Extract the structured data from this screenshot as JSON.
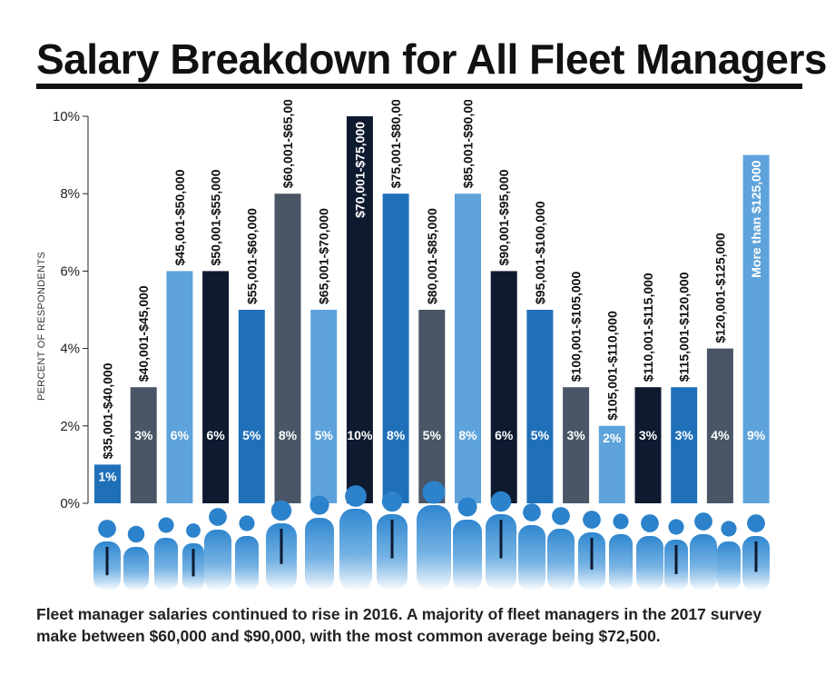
{
  "title": "Salary Breakdown for All Fleet Managers",
  "caption": "Fleet manager salaries continued to rise in 2016. A majority of fleet managers in the 2017 survey make between $60,000 and $90,000, with the most common average be­ing $72,500.",
  "colors": {
    "navy": "#0e1a30",
    "blue": "#1f70b8",
    "light_blue": "#5ea3db",
    "slate": "#4a5666",
    "silhouette": "#2f86cf"
  },
  "chart_data": {
    "type": "bar",
    "ylabel": "PERCENT OF RESPONDENTS",
    "ylim": [
      0,
      10
    ],
    "yticks": [
      "0%",
      "2%",
      "4%",
      "6%",
      "8%",
      "10%"
    ],
    "categories": [
      "$35,001-$40,000",
      "$40,001-$45,000",
      "$45,001-$50,000",
      "$50,001-$55,000",
      "$55,001-$60,000",
      "$60,001-$65,000",
      "$65,001-$70,000",
      "$70,001-$75,000",
      "$75,001-$80,000",
      "$80,001-$85,000",
      "$85,001-$90,000",
      "$90,001-$95,000",
      "$95,001-$100,000",
      "$100,001-$105,000",
      "$105,001-$110,000",
      "$110,001-$115,000",
      "$115,001-$120,000",
      "$120,001-$125,000",
      "More than $125,000"
    ],
    "values": [
      1,
      3,
      6,
      6,
      5,
      8,
      5,
      10,
      8,
      5,
      8,
      6,
      5,
      3,
      2,
      3,
      3,
      4,
      9
    ],
    "data_labels": [
      "1%",
      "3%",
      "6%",
      "6%",
      "5%",
      "8%",
      "5%",
      "10%",
      "8%",
      "5%",
      "8%",
      "6%",
      "5%",
      "3%",
      "2%",
      "3%",
      "3%",
      "4%",
      "9%"
    ],
    "bar_colors": [
      "#1f70b8",
      "#4a5666",
      "#5ea3db",
      "#0e1a30",
      "#1f70b8",
      "#4a5666",
      "#5ea3db",
      "#0e1a30",
      "#1f70b8",
      "#4a5666",
      "#5ea3db",
      "#0e1a30",
      "#1f70b8",
      "#4a5666",
      "#5ea3db",
      "#0e1a30",
      "#1f70b8",
      "#4a5666",
      "#5ea3db"
    ],
    "grid": false,
    "legend": "none"
  }
}
